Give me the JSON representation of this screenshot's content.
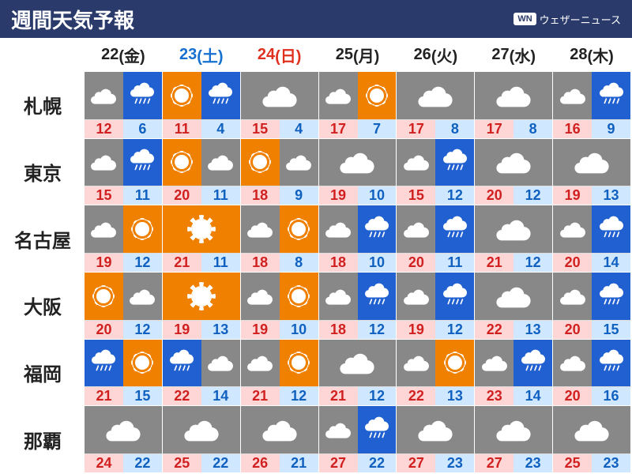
{
  "title": "週間天気予報",
  "brand_badge": "WN",
  "brand_text": "ウェザーニュース",
  "colors": {
    "header_bg": "#2a3b6b",
    "cloud_bg": "#888888",
    "sun_bg": "#f08000",
    "rain_bg": "#2060d0",
    "hi_bg": "#ffd6d6",
    "hi_fg": "#d02020",
    "lo_bg": "#d0e8ff",
    "lo_fg": "#1060c0",
    "sat": "#1570d0",
    "sun_day": "#e03020",
    "weekday": "#222222"
  },
  "days": [
    {
      "num": "22",
      "dow": "(金)",
      "color": "#222222"
    },
    {
      "num": "23",
      "dow": "(土)",
      "color": "#1570d0"
    },
    {
      "num": "24",
      "dow": "(日)",
      "color": "#e03020"
    },
    {
      "num": "25",
      "dow": "(月)",
      "color": "#222222"
    },
    {
      "num": "26",
      "dow": "(火)",
      "color": "#222222"
    },
    {
      "num": "27",
      "dow": "(水)",
      "color": "#222222"
    },
    {
      "num": "28",
      "dow": "(木)",
      "color": "#222222"
    }
  ],
  "cities": [
    "札幌",
    "東京",
    "名古屋",
    "大阪",
    "福岡",
    "那覇"
  ],
  "cells": [
    [
      {
        "w": [
          "cloud",
          "rain"
        ],
        "hi": 12,
        "lo": 6
      },
      {
        "w": [
          "sun",
          "rain"
        ],
        "hi": 11,
        "lo": 4
      },
      {
        "w": [
          "cloud"
        ],
        "hi": 15,
        "lo": 4
      },
      {
        "w": [
          "cloud",
          "sun"
        ],
        "hi": 17,
        "lo": 7
      },
      {
        "w": [
          "cloud"
        ],
        "hi": 17,
        "lo": 8
      },
      {
        "w": [
          "cloud"
        ],
        "hi": 17,
        "lo": 8
      },
      {
        "w": [
          "cloud",
          "rain"
        ],
        "hi": 16,
        "lo": 9
      }
    ],
    [
      {
        "w": [
          "cloud",
          "rain"
        ],
        "hi": 15,
        "lo": 11
      },
      {
        "w": [
          "sun",
          "cloud"
        ],
        "hi": 20,
        "lo": 11
      },
      {
        "w": [
          "sun",
          "cloud"
        ],
        "hi": 18,
        "lo": 9
      },
      {
        "w": [
          "cloud"
        ],
        "hi": 19,
        "lo": 10
      },
      {
        "w": [
          "cloud",
          "rain"
        ],
        "hi": 15,
        "lo": 12
      },
      {
        "w": [
          "cloud"
        ],
        "hi": 20,
        "lo": 12
      },
      {
        "w": [
          "cloud"
        ],
        "hi": 19,
        "lo": 13
      }
    ],
    [
      {
        "w": [
          "cloud",
          "sun"
        ],
        "hi": 19,
        "lo": 12
      },
      {
        "w": [
          "sun"
        ],
        "hi": 21,
        "lo": 11
      },
      {
        "w": [
          "cloud",
          "sun"
        ],
        "hi": 18,
        "lo": 8
      },
      {
        "w": [
          "cloud",
          "rain"
        ],
        "hi": 18,
        "lo": 10
      },
      {
        "w": [
          "cloud",
          "rain"
        ],
        "hi": 20,
        "lo": 11
      },
      {
        "w": [
          "cloud"
        ],
        "hi": 21,
        "lo": 12
      },
      {
        "w": [
          "cloud",
          "rain"
        ],
        "hi": 20,
        "lo": 14
      }
    ],
    [
      {
        "w": [
          "sun",
          "cloud"
        ],
        "hi": 20,
        "lo": 12
      },
      {
        "w": [
          "sun"
        ],
        "hi": 19,
        "lo": 13
      },
      {
        "w": [
          "cloud",
          "sun"
        ],
        "hi": 19,
        "lo": 10
      },
      {
        "w": [
          "cloud",
          "rain"
        ],
        "hi": 18,
        "lo": 12
      },
      {
        "w": [
          "cloud",
          "rain"
        ],
        "hi": 19,
        "lo": 12
      },
      {
        "w": [
          "cloud"
        ],
        "hi": 22,
        "lo": 13
      },
      {
        "w": [
          "cloud",
          "rain"
        ],
        "hi": 20,
        "lo": 15
      }
    ],
    [
      {
        "w": [
          "rain",
          "sun"
        ],
        "hi": 21,
        "lo": 15
      },
      {
        "w": [
          "rain",
          "cloud"
        ],
        "hi": 22,
        "lo": 14
      },
      {
        "w": [
          "cloud",
          "sun"
        ],
        "hi": 21,
        "lo": 12
      },
      {
        "w": [
          "cloud"
        ],
        "hi": 21,
        "lo": 12
      },
      {
        "w": [
          "cloud",
          "sun"
        ],
        "hi": 22,
        "lo": 13
      },
      {
        "w": [
          "cloud",
          "rain"
        ],
        "hi": 23,
        "lo": 14
      },
      {
        "w": [
          "cloud",
          "rain"
        ],
        "hi": 20,
        "lo": 16
      }
    ],
    [
      {
        "w": [
          "cloud"
        ],
        "hi": 24,
        "lo": 22
      },
      {
        "w": [
          "cloud"
        ],
        "hi": 25,
        "lo": 22
      },
      {
        "w": [
          "cloud"
        ],
        "hi": 26,
        "lo": 21
      },
      {
        "w": [
          "cloud",
          "rain"
        ],
        "hi": 27,
        "lo": 22
      },
      {
        "w": [
          "cloud"
        ],
        "hi": 27,
        "lo": 23
      },
      {
        "w": [
          "cloud"
        ],
        "hi": 27,
        "lo": 23
      },
      {
        "w": [
          "cloud"
        ],
        "hi": 25,
        "lo": 23
      }
    ]
  ]
}
